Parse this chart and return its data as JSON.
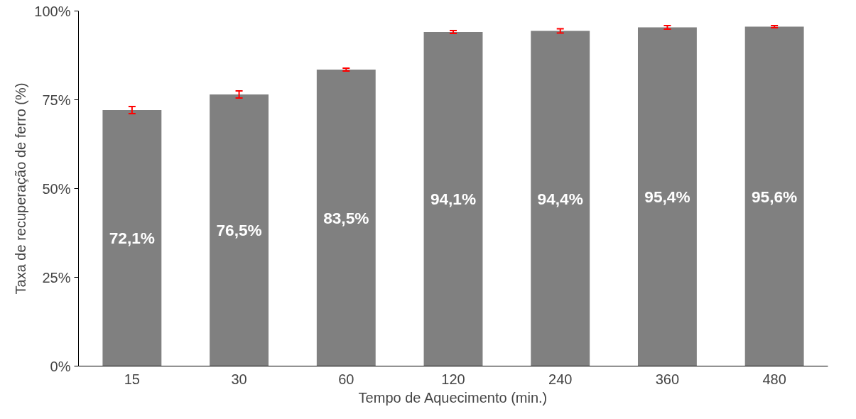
{
  "chart_data": {
    "type": "bar",
    "xlabel": "Tempo de Aquecimento (min.)",
    "ylabel": "Taxa de recuperação de ferro (%)",
    "categories": [
      "15",
      "30",
      "60",
      "120",
      "240",
      "360",
      "480"
    ],
    "values": [
      72.1,
      76.5,
      83.5,
      94.1,
      94.4,
      95.4,
      95.6
    ],
    "color": "#808080",
    "errors": [
      1.0,
      1.0,
      0.4,
      0.4,
      0.6,
      0.5,
      0.3
    ],
    "value_labels": [
      "72,1%",
      "76,5%",
      "83,5%",
      "94,1%",
      "94,4%",
      "95,4%",
      "95,6%"
    ],
    "ylim": [
      0,
      100
    ],
    "yticks": [
      {
        "value": 0,
        "label": "0%"
      },
      {
        "value": 25,
        "label": "25%"
      },
      {
        "value": 50,
        "label": "50%"
      },
      {
        "value": 75,
        "label": "75%"
      },
      {
        "value": 100,
        "label": "100%"
      }
    ],
    "grid": false
  }
}
